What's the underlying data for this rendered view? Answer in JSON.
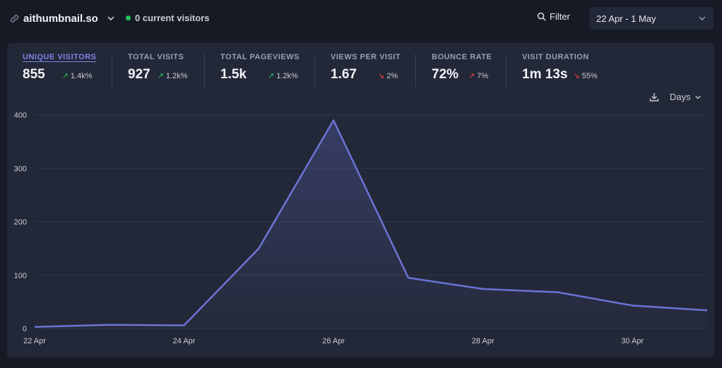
{
  "header": {
    "site_name": "aithumbnail.so",
    "current_visitors": "0 current visitors",
    "filter_label": "Filter",
    "date_range": "22 Apr - 1 May"
  },
  "stats": [
    {
      "label": "UNIQUE VISITORS",
      "value": "855",
      "change": "1.4k%",
      "direction": "up",
      "active": true
    },
    {
      "label": "TOTAL VISITS",
      "value": "927",
      "change": "1.2k%",
      "direction": "up",
      "active": false
    },
    {
      "label": "TOTAL PAGEVIEWS",
      "value": "1.5k",
      "change": "1.2k%",
      "direction": "up",
      "active": false
    },
    {
      "label": "VIEWS PER VISIT",
      "value": "1.67",
      "change": "2%",
      "direction": "down",
      "active": false
    },
    {
      "label": "BOUNCE RATE",
      "value": "72%",
      "change": "7%",
      "direction": "up",
      "active": false
    },
    {
      "label": "VISIT DURATION",
      "value": "1m 13s",
      "change": "55%",
      "direction": "down",
      "active": false
    }
  ],
  "chart_controls": {
    "interval_label": "Days"
  },
  "colors": {
    "line": "#6b74d6",
    "up": "#22c55e",
    "down": "#ef4444",
    "accent": "#7c84e8"
  },
  "chart_data": {
    "type": "area",
    "x": [
      "22 Apr",
      "23 Apr",
      "24 Apr",
      "25 Apr",
      "26 Apr",
      "27 Apr",
      "28 Apr",
      "29 Apr",
      "30 Apr",
      "1 May"
    ],
    "x_tick_labels": [
      "22 Apr",
      "24 Apr",
      "26 Apr",
      "28 Apr",
      "30 Apr"
    ],
    "y_ticks": [
      0,
      100,
      200,
      300,
      400
    ],
    "ylim": [
      0,
      400
    ],
    "series": [
      {
        "values": [
          3,
          7,
          6,
          150,
          390,
          95,
          74,
          68,
          43,
          34
        ]
      }
    ],
    "grid": true
  }
}
